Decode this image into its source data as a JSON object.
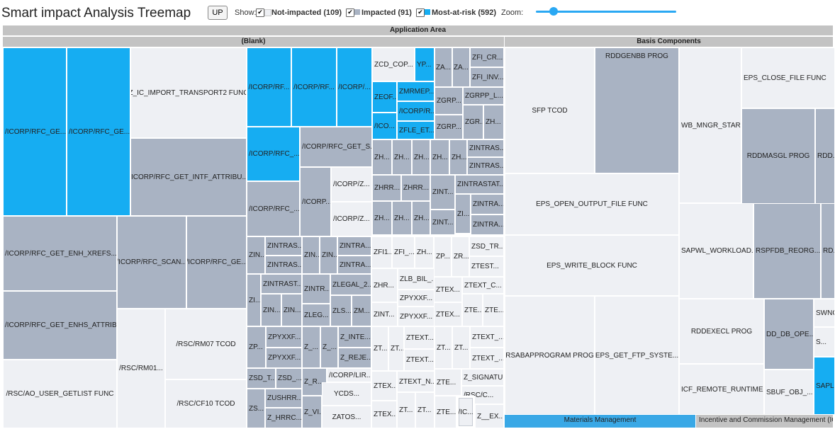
{
  "header": {
    "title": "Smart impact Analysis Treemap",
    "up_label": "UP",
    "show_label": "Show:",
    "check_mark": "✔",
    "legend": {
      "not_impacted": "Not-impacted (109)",
      "impacted": "Impacted (91)",
      "most_at_risk": "Most-at-risk (592)"
    },
    "zoom_label": "Zoom:",
    "zoom_level": 0.1
  },
  "colors": {
    "not_impacted": "#eef0f4",
    "impacted": "#a9b3c3",
    "most_at_risk": "#16adf2",
    "header": "#c3c3c3"
  },
  "treemap": {
    "root_label": "Application Area",
    "group_blank": "(Blank)",
    "group_basis": "Basis Components",
    "group_mm": "Materials Management",
    "group_icm": "Incentive and Commission Management (ICM)",
    "cells": [
      "/ICORP/RFC_GE...",
      "/ICORP/RFC_GE...",
      "Z_IC_IMPORT_TRANSPORT2 FUNC",
      "/ICORP/RFC_GET_INTF_ATTRIBU...",
      "/ICORP/RFC_GET_ENH_XREFS...",
      "/ICORP/RFC_SCAN...",
      "/ICORP/RFC_GE...",
      "/ICORP/RFC_GET_ENHS_ATTRIB...",
      "/RSC/AO_USER_GETLIST FUNC",
      "/RSC/RM01...",
      "/RSC/RM07 TCOD",
      "/RSC/CF10 TCOD",
      "/ICORP/RF...",
      "/ICORP/RF...",
      "/ICORP/...",
      "ZCD_COP...",
      "YP...",
      "ZA...",
      "ZA...",
      "ZFI_CR...",
      "ZFI_INV...",
      "ZEOF...",
      "ZMRMEP...",
      "/ICORP/R...",
      "/ICO...",
      "ZFLE_ET...",
      "ZGRP...",
      "ZGRPP_L...",
      "ZGRP...",
      "ZGR...",
      "ZH...",
      "/ICORP/RFC_...",
      "/ICORP/RFC_GET_S...",
      "/ICORP/RFC_...",
      "/ICORP...",
      "/ICORP/Z...",
      "/ICORP/Z...",
      "ZH...",
      "ZH...",
      "ZH...",
      "ZH...",
      "ZH...",
      "ZINTRAS...",
      "ZINTRAS...",
      "ZHRR...",
      "ZHRR...",
      "ZINT...",
      "ZINTRASTAT...",
      "ZINTRA...",
      "ZI...",
      "ZH...",
      "ZH...",
      "ZH...",
      "ZINT...",
      "ZINTRA...",
      "ZIN...",
      "ZINTRAS...",
      "ZINTRAS...",
      "ZIN...",
      "ZIN...",
      "ZINTRA...",
      "ZINTRA...",
      "ZFI1...",
      "ZFI_...",
      "ZH...",
      "ZP...",
      "ZR...",
      "ZSD_TR...",
      "ZTEST...",
      "ZI...",
      "ZINTRAST...",
      "ZINTR...",
      "ZLEGAL_2...",
      "ZHR...",
      "ZLB_BIL_...",
      "ZTEX...",
      "ZTEXT_C...",
      "ZIN...",
      "ZIN...",
      "ZLEG...",
      "ZLS...",
      "ZM...",
      "ZINT...",
      "ZPYXXF...",
      "ZPYXXF...",
      "ZTEX...",
      "ZTE...",
      "ZTE...",
      "ZP...",
      "ZPYXXF...",
      "ZPYXXF...",
      "Z_...",
      "Z_...",
      "Z_INTE...",
      "Z_REJE...",
      "ZT...",
      "ZT...",
      "ZTEXT...",
      "ZTEXT...",
      "ZT...",
      "ZT...",
      "ZTEXT_...",
      "ZTEXT_...",
      "ZSD_T...",
      "ZSD_...",
      "Z_R...",
      "/ICORP/LIR...",
      "ZTEX...",
      "ZTEXT_N...",
      "ZTE...",
      "Z_SIGNATU...",
      "ZS...",
      "ZUSHRR...",
      "Z_HRRC...",
      "Z_VI...",
      "YCDS...",
      "ZATOS...",
      "ZTEX...",
      "ZT...",
      "ZT...",
      "ZTE...",
      "/RSC/C...",
      "/IC...",
      "Z__EX...",
      "SFP TCOD",
      "RDDGENBB PROG",
      "WB_MNGR_STAR...",
      "EPS_CLOSE_FILE FUNC",
      "RDDMASGL PROG",
      "RDD...",
      "EPS_OPEN_OUTPUT_FILE FUNC",
      "EPS_WRITE_BLOCK FUNC",
      "SAPWL_WORKLOAD...",
      "RSPFDB_REORG...",
      "RD...",
      "RSABAPPROGRAM PROG",
      "EPS_GET_FTP_SYSTE...",
      "RDDEXECL PROG",
      "DD_DB_OPE...",
      "SWNC...",
      "S...",
      "ICF_REMOTE_RUNTIME...",
      "SBUF_OBJ_...",
      "SAPL..."
    ]
  }
}
